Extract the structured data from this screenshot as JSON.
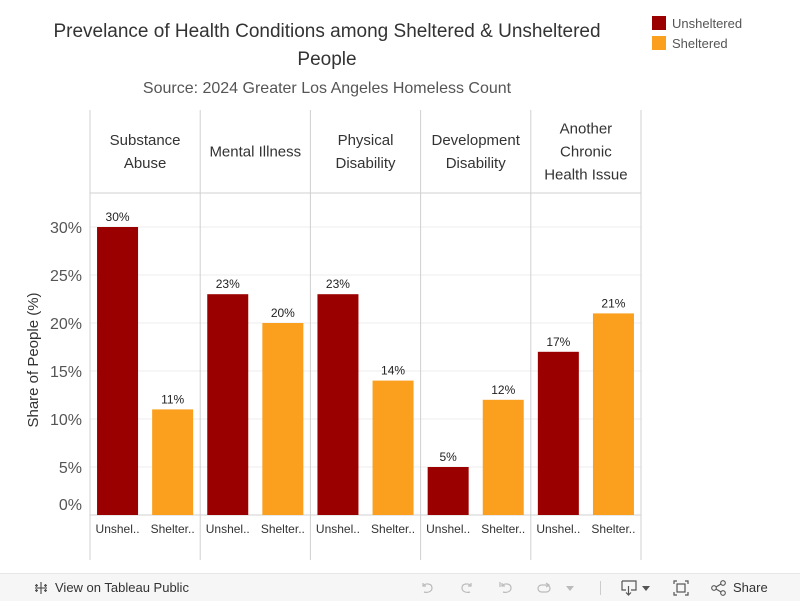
{
  "chart_data": {
    "type": "bar",
    "title": "Prevelance of Health Conditions among Sheltered & Unsheltered People",
    "title_lines": [
      "Prevelance of Health Conditions among Sheltered & Unsheltered",
      "People"
    ],
    "subtitle": "Source: 2024 Greater Los Angeles Homeless Count",
    "xlabel": "",
    "ylabel": "Share of People (%)",
    "ylim": [
      0,
      33
    ],
    "yticks": [
      0,
      5,
      10,
      15,
      20,
      25,
      30
    ],
    "ytick_labels": [
      "0%",
      "5%",
      "10%",
      "15%",
      "20%",
      "25%",
      "30%"
    ],
    "grid": true,
    "legend_position": "top-right",
    "categories": [
      {
        "label": "Substance Abuse",
        "lines": [
          "Substance",
          "Abuse"
        ]
      },
      {
        "label": "Mental Illness",
        "lines": [
          "Mental Illness"
        ]
      },
      {
        "label": "Physical Disability",
        "lines": [
          "Physical",
          "Disability"
        ]
      },
      {
        "label": "Development Disability",
        "lines": [
          "Development",
          "Disability"
        ]
      },
      {
        "label": "Another Chronic Health Issue",
        "lines": [
          "Another",
          "Chronic",
          "Health Issue"
        ]
      }
    ],
    "series": [
      {
        "name": "Unsheltered",
        "short_label": "Unshel..",
        "color": "#9b0000",
        "values": [
          30,
          23,
          23,
          5,
          17
        ],
        "data_labels": [
          "30%",
          "23%",
          "23%",
          "5%",
          "17%"
        ]
      },
      {
        "name": "Sheltered",
        "short_label": "Shelter..",
        "color": "#fb9f1f",
        "values": [
          11,
          20,
          14,
          12,
          21
        ],
        "data_labels": [
          "11%",
          "20%",
          "14%",
          "12%",
          "21%"
        ]
      }
    ]
  },
  "legend": {
    "items": [
      {
        "label": "Unsheltered",
        "color": "#9b0000"
      },
      {
        "label": "Sheltered",
        "color": "#fb9f1f"
      }
    ]
  },
  "toolbar": {
    "view_label": "View on Tableau Public",
    "share_label": "Share"
  }
}
